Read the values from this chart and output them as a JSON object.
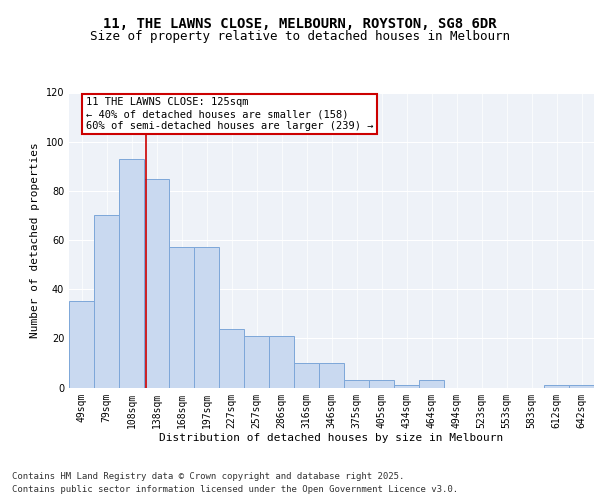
{
  "title": "11, THE LAWNS CLOSE, MELBOURN, ROYSTON, SG8 6DR",
  "subtitle": "Size of property relative to detached houses in Melbourn",
  "xlabel": "Distribution of detached houses by size in Melbourn",
  "ylabel": "Number of detached properties",
  "categories": [
    "49sqm",
    "79sqm",
    "108sqm",
    "138sqm",
    "168sqm",
    "197sqm",
    "227sqm",
    "257sqm",
    "286sqm",
    "316sqm",
    "346sqm",
    "375sqm",
    "405sqm",
    "434sqm",
    "464sqm",
    "494sqm",
    "523sqm",
    "553sqm",
    "583sqm",
    "612sqm",
    "642sqm"
  ],
  "bar_values": [
    35,
    70,
    93,
    85,
    57,
    57,
    24,
    21,
    21,
    10,
    10,
    3,
    3,
    1,
    3,
    0,
    0,
    0,
    0,
    1,
    1
  ],
  "bar_color": "#c9d9f0",
  "bar_edge_color": "#7da7d9",
  "annotation_text_line1": "11 THE LAWNS CLOSE: 125sqm",
  "annotation_text_line2": "← 40% of detached houses are smaller (158)",
  "annotation_text_line3": "60% of semi-detached houses are larger (239) →",
  "annotation_box_facecolor": "#ffffff",
  "annotation_box_edgecolor": "#cc0000",
  "vline_color": "#cc0000",
  "ylim": [
    0,
    120
  ],
  "yticks": [
    0,
    20,
    40,
    60,
    80,
    100,
    120
  ],
  "background_color": "#eef2f8",
  "grid_color": "#ffffff",
  "footer_line1": "Contains HM Land Registry data © Crown copyright and database right 2025.",
  "footer_line2": "Contains public sector information licensed under the Open Government Licence v3.0.",
  "title_fontsize": 10,
  "subtitle_fontsize": 9,
  "axis_label_fontsize": 8,
  "tick_fontsize": 7,
  "footer_fontsize": 6.5,
  "annot_fontsize": 7.5
}
